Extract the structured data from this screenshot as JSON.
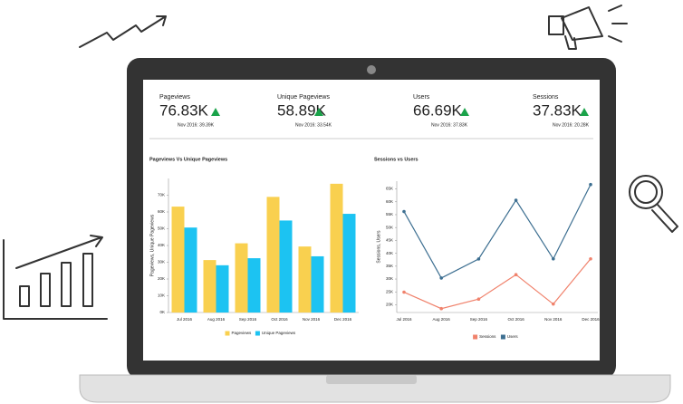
{
  "kpis": [
    {
      "label": "Pageviews",
      "value": "76.83K",
      "compare": "Nov 2016: 39.39K"
    },
    {
      "label": "Unique Pageviews",
      "value": "58.89K",
      "compare": "Nov 2016: 33.54K"
    },
    {
      "label": "Users",
      "value": "66.69K",
      "compare": "Nov 2016: 37.83K"
    },
    {
      "label": "Sessions",
      "value": "37.83K",
      "compare": "Nov 2016: 20.28K"
    }
  ],
  "chart_data": [
    {
      "type": "bar",
      "title": "Pageviews Vs Unique Pageviews",
      "y_label": "Pageviews, Unique Pageviews",
      "categories": [
        "Jul 2016",
        "Aug 2016",
        "Sep 2016",
        "Oct 2016",
        "Nov 2016",
        "Dec 2016"
      ],
      "series": [
        {
          "name": "Pageviews",
          "color": "#f9d04f",
          "values": [
            63200,
            31300,
            41300,
            69000,
            39390,
            76830
          ]
        },
        {
          "name": "Unique Pageviews",
          "color": "#1cc3f2",
          "values": [
            50700,
            28200,
            32400,
            54900,
            33540,
            58890
          ]
        }
      ],
      "ylim": [
        0,
        80000
      ],
      "yticks": [
        {
          "value": 0,
          "label": "0K"
        },
        {
          "value": 10000,
          "label": "10K"
        },
        {
          "value": 20000,
          "label": "20K"
        },
        {
          "value": 30000,
          "label": "30K"
        },
        {
          "value": 40000,
          "label": "40K"
        },
        {
          "value": 50000,
          "label": "50K"
        },
        {
          "value": 60000,
          "label": "60K"
        },
        {
          "value": 70000,
          "label": "70K"
        }
      ],
      "grid": false
    },
    {
      "type": "line",
      "title": "Sessions vs Users",
      "y_label": "Sessions, Users",
      "categories": [
        "Jul 2016",
        "Aug 2016",
        "Sep 2016",
        "Oct 2016",
        "Nov 2016",
        "Dec 2016"
      ],
      "series": [
        {
          "name": "Sessions",
          "color": "#f0826c",
          "values": [
            24900,
            18500,
            22200,
            31700,
            20280,
            37830
          ]
        },
        {
          "name": "Users",
          "color": "#3d6f91",
          "values": [
            56200,
            30400,
            37800,
            60600,
            37830,
            66690
          ]
        }
      ],
      "ylim": [
        17000,
        68000
      ],
      "yticks": [
        {
          "value": 20000,
          "label": "20K"
        },
        {
          "value": 25000,
          "label": "25K"
        },
        {
          "value": 30000,
          "label": "30K"
        },
        {
          "value": 35000,
          "label": "35K"
        },
        {
          "value": 40000,
          "label": "40K"
        },
        {
          "value": 45000,
          "label": "45K"
        },
        {
          "value": 50000,
          "label": "50K"
        },
        {
          "value": 55000,
          "label": "55K"
        },
        {
          "value": 60000,
          "label": "60K"
        },
        {
          "value": 65000,
          "label": "65K"
        }
      ],
      "grid": false
    }
  ]
}
